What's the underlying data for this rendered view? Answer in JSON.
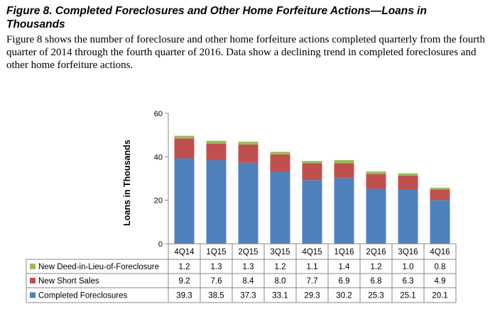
{
  "figure": {
    "title": "Figure 8. Completed Foreclosures and Other Home Forfeiture Actions—Loans in Thousands",
    "description": "Figure 8 shows the number of foreclosure and other home forfeiture actions completed quarterly from the fourth quarter of 2014 through the fourth quarter of 2016. Data show a declining trend in completed foreclosures and other home forfeiture actions."
  },
  "chart_data": {
    "type": "bar",
    "stacked": true,
    "title": "",
    "xlabel": "",
    "ylabel": "Loans in Thousands",
    "ylim": [
      0,
      60
    ],
    "yticks": [
      0,
      20,
      40,
      60
    ],
    "grid": false,
    "legend": "data-table-left",
    "categories": [
      "4Q14",
      "1Q15",
      "2Q15",
      "3Q15",
      "4Q15",
      "1Q16",
      "2Q16",
      "3Q16",
      "4Q16"
    ],
    "series": [
      {
        "name": "Completed Foreclosures",
        "color": "#4f81bd",
        "values": [
          39.3,
          38.5,
          37.3,
          33.1,
          29.3,
          30.2,
          25.3,
          25.1,
          20.1
        ]
      },
      {
        "name": "New Short Sales",
        "color": "#c0504d",
        "values": [
          9.2,
          7.6,
          8.4,
          8.0,
          7.7,
          6.9,
          6.8,
          6.3,
          4.9
        ]
      },
      {
        "name": "New Deed-in-Lieu-of-Foreclosure",
        "color": "#9bbb59",
        "values": [
          1.2,
          1.3,
          1.3,
          1.2,
          1.1,
          1.4,
          1.2,
          1.0,
          0.8
        ]
      }
    ],
    "table_row_order": [
      "New Deed-in-Lieu-of-Foreclosure",
      "New Short Sales",
      "Completed Foreclosures"
    ]
  }
}
